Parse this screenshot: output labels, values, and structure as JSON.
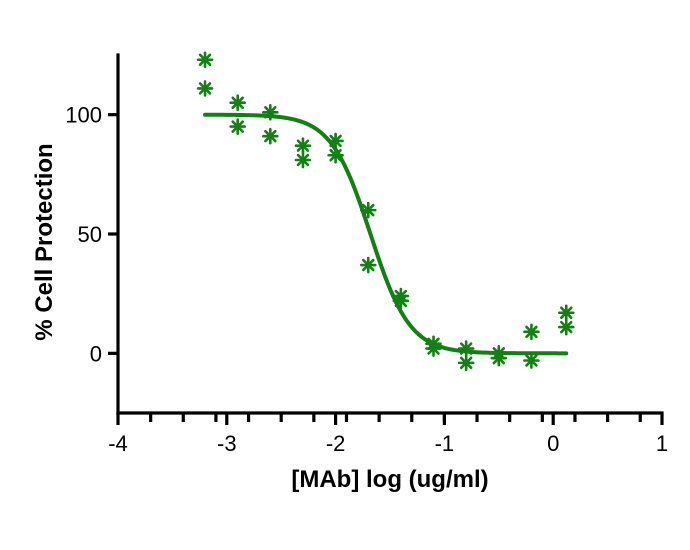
{
  "colors": {
    "series": "#128012",
    "axis": "#000000",
    "background": "#ffffff"
  },
  "chart_data": {
    "type": "scatter",
    "title": "",
    "xlabel": "[MAb] log (ug/ml)",
    "ylabel": "% Cell Protection",
    "xlim": [
      -4,
      1
    ],
    "ylim": [
      -25,
      125
    ],
    "x_ticks": [
      -4,
      -3,
      -2,
      -1,
      0,
      1
    ],
    "x_tick_labels": [
      "-4",
      "-3",
      "-2",
      "-1",
      "0",
      "1"
    ],
    "x_minor_step": 0.3,
    "y_ticks": [
      0,
      50,
      100
    ],
    "y_tick_labels": [
      "0",
      "50",
      "100"
    ],
    "grid": false,
    "legend": "none",
    "marker": "asterisk",
    "series": [
      {
        "x": [
          -3.2,
          -3.2,
          -2.9,
          -2.9,
          -2.6,
          -2.6,
          -2.3,
          -2.3,
          -2.0,
          -2.0,
          -1.7,
          -1.7,
          -1.4,
          -1.4,
          -1.1,
          -1.1,
          -0.8,
          -0.8,
          -0.5,
          -0.5,
          -0.2,
          -0.2,
          0.12,
          0.12
        ],
        "y": [
          123,
          111,
          105,
          95,
          101,
          91,
          87,
          81,
          89,
          83,
          60,
          37,
          24,
          22,
          4,
          2,
          2,
          -4,
          0,
          -2,
          9,
          -3,
          17,
          11
        ]
      }
    ],
    "fit": {
      "model": "four-parameter logistic",
      "top": 100,
      "bottom": 0,
      "log_ec50": -1.68,
      "hill": -2.4,
      "x_range": [
        -3.2,
        0.12
      ]
    }
  }
}
